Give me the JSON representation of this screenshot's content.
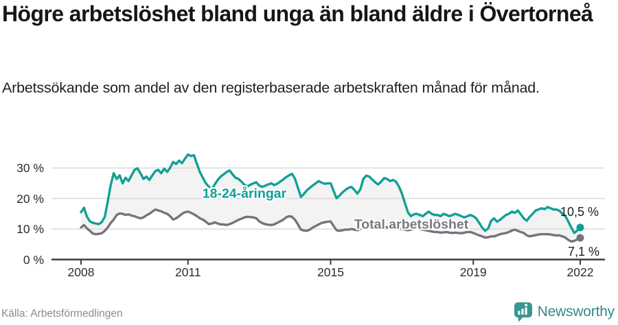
{
  "header": {
    "title": "Högre arbetslöshet bland unga än bland äldre i Övertorneå",
    "subtitle": "Arbetssökande som andel av den registerbaserade arbetskraften månad för månad."
  },
  "footer": {
    "source": "Källa: Arbetsförmedlingen",
    "brand": "Newsworthy"
  },
  "colors": {
    "young_line": "#12a096",
    "total_line": "#76737d",
    "total_label": "#7b7880",
    "band_fill": "#f3f3f3",
    "gridline": "#dadada",
    "axis": "#3c3c3c",
    "brand_teal": "#338a88"
  },
  "chart_data": {
    "type": "line",
    "title": "Högre arbetslöshet bland unga än bland äldre i Övertorneå",
    "subtitle": "Arbetssökande som andel av den registerbaserade arbetskraften månad för månad.",
    "unit": "%",
    "x_start_year": 2008,
    "x_start_month": 1,
    "x_step_months": 1,
    "x_end_label": "2022",
    "grid": true,
    "legend": "inline-labels",
    "ylim": [
      0,
      37
    ],
    "y_ticks": [
      0,
      10,
      20,
      30
    ],
    "y_tick_labels": [
      "0 %",
      "10 %",
      "20 %",
      "30 %"
    ],
    "x_ticks": [
      2008,
      2011,
      2015,
      2019,
      2022
    ],
    "x_tick_labels": [
      "2008",
      "2011",
      "2015",
      "2019",
      "2022"
    ],
    "series": [
      {
        "name": "18-24-åringar",
        "color": "#12a096",
        "end_label": "10,5 %",
        "end_value": 10.5,
        "values": [
          15.5,
          17.0,
          14.0,
          12.5,
          12.0,
          11.8,
          11.6,
          12.3,
          14.0,
          19.0,
          24.5,
          28.3,
          26.4,
          27.6,
          25.0,
          26.8,
          25.7,
          27.6,
          29.4,
          29.9,
          28.3,
          26.4,
          27.2,
          26.1,
          27.6,
          29.0,
          29.4,
          28.3,
          29.8,
          28.7,
          30.1,
          32.0,
          31.3,
          32.4,
          31.6,
          33.1,
          34.4,
          33.9,
          34.2,
          31.3,
          28.7,
          26.8,
          25.0,
          23.9,
          23.0,
          24.6,
          26.1,
          27.2,
          27.9,
          28.7,
          29.2,
          27.9,
          26.8,
          26.4,
          25.5,
          24.5,
          24.0,
          24.5,
          25.0,
          25.3,
          24.2,
          23.8,
          24.2,
          24.6,
          25.0,
          24.4,
          24.8,
          25.5,
          26.2,
          27.0,
          27.6,
          28.1,
          26.5,
          23.5,
          20.5,
          21.5,
          22.7,
          23.5,
          24.3,
          25.0,
          25.7,
          25.2,
          24.8,
          25.0,
          25.0,
          22.5,
          20.1,
          21.0,
          22.0,
          22.8,
          23.5,
          23.8,
          22.8,
          21.6,
          23.0,
          26.4,
          27.5,
          27.2,
          26.2,
          25.3,
          24.6,
          25.5,
          26.7,
          26.4,
          25.7,
          26.1,
          25.5,
          23.9,
          21.6,
          18.5,
          15.5,
          14.2,
          14.8,
          15.0,
          14.6,
          14.2,
          15.0,
          15.7,
          15.0,
          14.6,
          14.6,
          14.2,
          15.0,
          14.6,
          14.2,
          14.6,
          15.0,
          14.6,
          14.2,
          13.8,
          14.2,
          14.6,
          14.2,
          13.5,
          12.0,
          10.5,
          9.4,
          10.2,
          12.7,
          13.5,
          12.4,
          13.0,
          13.8,
          14.6,
          15.0,
          15.7,
          15.3,
          16.1,
          14.8,
          13.5,
          12.7,
          14.0,
          15.0,
          16.1,
          16.4,
          16.8,
          16.5,
          17.2,
          16.8,
          16.4,
          16.4,
          16.0,
          15.0,
          14.2,
          12.4,
          10.5,
          8.7,
          9.5,
          10.5
        ]
      },
      {
        "name": "Total arbetslöshet",
        "color": "#76737d",
        "end_label": "7,1 %",
        "end_value": 7.1,
        "values": [
          10.5,
          11.3,
          10.2,
          9.4,
          8.5,
          8.3,
          8.4,
          8.6,
          9.4,
          10.5,
          12.0,
          13.1,
          14.6,
          15.1,
          15.0,
          14.6,
          14.8,
          14.4,
          14.2,
          13.8,
          13.5,
          13.8,
          14.5,
          15.0,
          15.7,
          16.4,
          16.1,
          15.8,
          15.3,
          15.0,
          14.2,
          13.1,
          13.5,
          14.2,
          15.0,
          15.5,
          15.7,
          15.3,
          14.8,
          14.2,
          13.5,
          13.1,
          12.4,
          11.6,
          11.8,
          12.2,
          11.8,
          11.5,
          11.5,
          11.3,
          11.6,
          12.0,
          12.5,
          13.0,
          13.4,
          13.8,
          14.0,
          13.9,
          13.8,
          13.5,
          12.5,
          11.9,
          11.6,
          11.4,
          11.3,
          11.5,
          12.0,
          12.5,
          13.0,
          13.8,
          14.2,
          14.0,
          13.0,
          11.5,
          9.8,
          9.5,
          9.4,
          9.8,
          10.5,
          11.0,
          11.5,
          12.0,
          12.2,
          12.4,
          12.5,
          11.0,
          9.6,
          9.4,
          9.6,
          9.8,
          9.8,
          10.0,
          9.8,
          9.6,
          10.0,
          10.4,
          10.8,
          11.0,
          10.5,
          10.2,
          10.0,
          10.4,
          10.8,
          10.5,
          10.2,
          10.0,
          10.2,
          10.0,
          10.0,
          9.8,
          9.6,
          9.8,
          10.0,
          10.2,
          10.0,
          9.8,
          9.6,
          9.4,
          9.2,
          9.0,
          9.0,
          8.8,
          8.9,
          9.0,
          8.8,
          8.7,
          8.8,
          8.7,
          8.6,
          8.8,
          9.0,
          9.0,
          8.7,
          8.3,
          7.9,
          7.6,
          7.2,
          7.3,
          7.6,
          7.6,
          7.9,
          8.3,
          8.5,
          8.7,
          9.0,
          9.5,
          9.8,
          9.4,
          9.0,
          8.7,
          7.9,
          7.6,
          7.8,
          8.0,
          8.2,
          8.3,
          8.3,
          8.3,
          8.2,
          8.0,
          7.9,
          7.9,
          7.6,
          7.2,
          6.4,
          5.9,
          6.1,
          6.6,
          7.1
        ]
      }
    ]
  }
}
